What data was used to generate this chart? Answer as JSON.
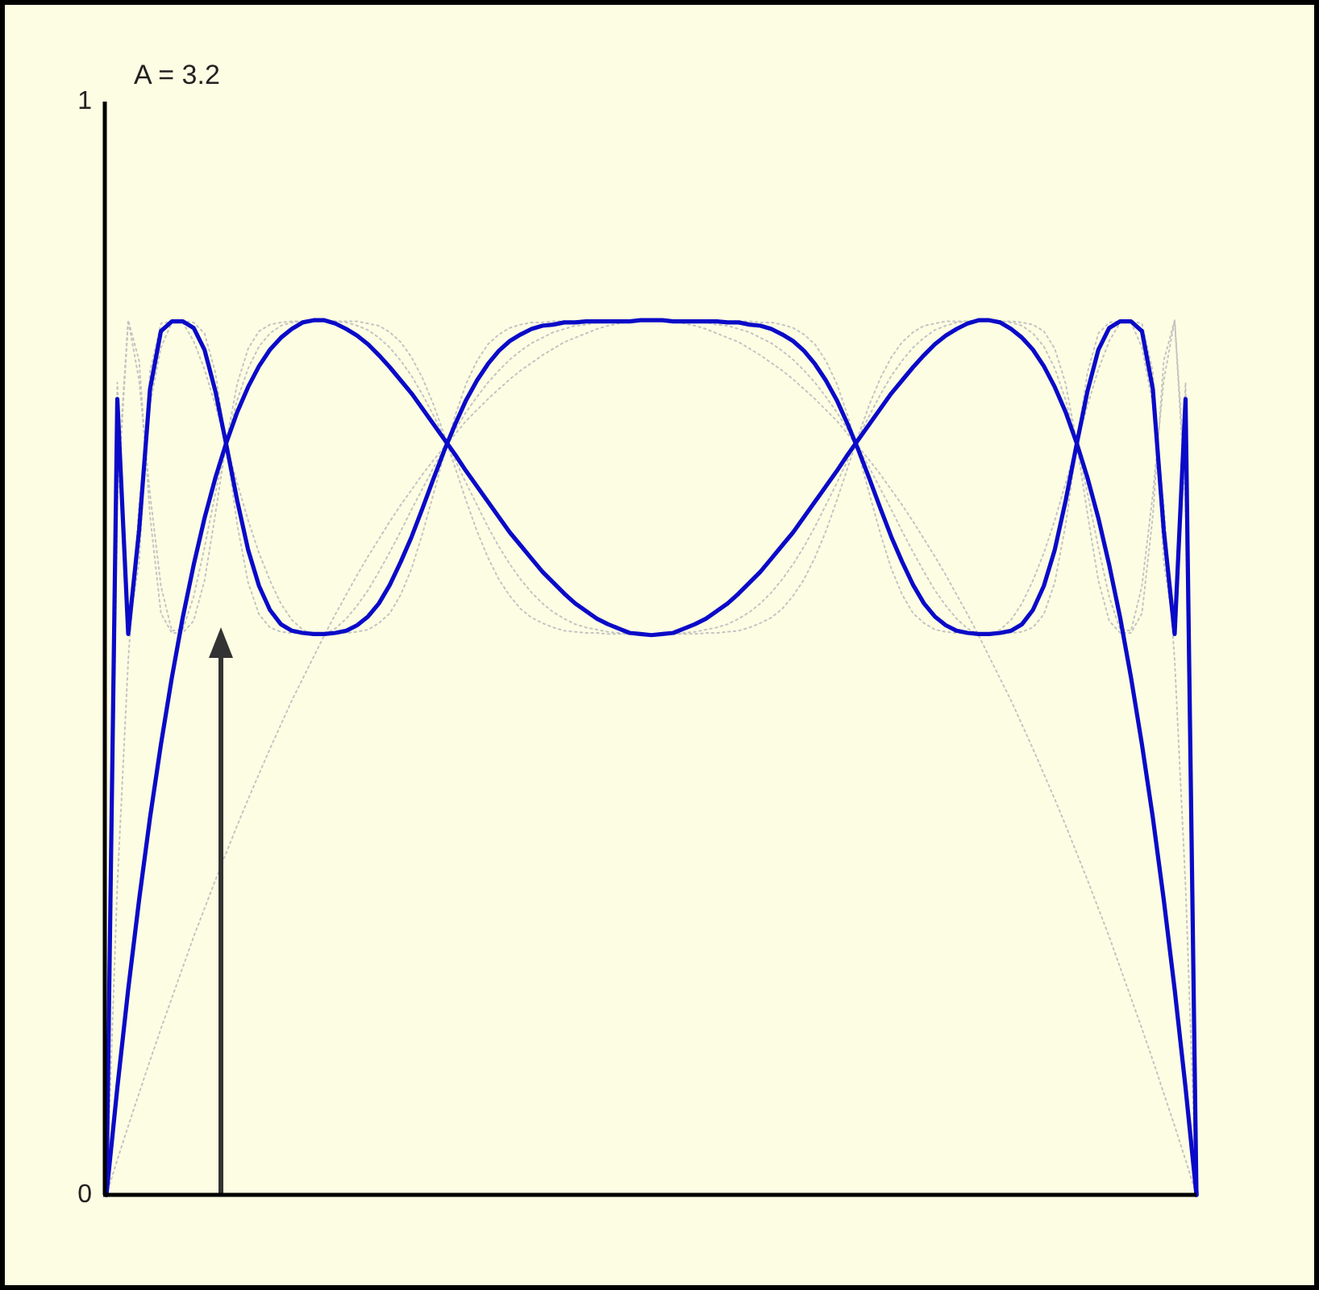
{
  "chart_data": {
    "type": "line",
    "title": "A = 3.2",
    "categories": [
      null,
      null,
      null,
      null,
      null,
      null,
      null,
      null,
      null,
      null,
      null,
      null,
      null,
      null,
      null,
      null,
      null,
      null,
      null,
      null,
      null,
      null,
      null,
      null,
      null,
      null,
      null,
      null,
      null,
      null,
      null,
      null,
      null,
      null,
      null,
      null,
      null,
      null,
      null,
      null,
      null,
      null,
      null,
      null,
      null,
      null,
      null,
      null,
      null,
      null,
      null,
      null,
      null,
      null,
      null,
      null,
      null,
      null,
      null,
      null,
      null,
      null,
      null,
      null,
      null,
      null,
      null,
      null,
      null,
      null,
      null,
      null,
      null,
      null,
      null,
      null,
      null,
      null,
      null,
      null,
      null,
      null,
      null,
      null,
      null,
      null,
      null,
      null,
      null,
      null,
      null,
      null,
      null,
      null,
      null,
      null,
      null,
      null,
      null,
      null,
      null
    ],
    "ylim": [
      0,
      1
    ],
    "yticks": [
      0,
      1
    ],
    "tick_labels": "y",
    "series": [
      {
        "color": "#c4c4c4",
        "line_style": "dotted",
        "values": [
          0,
          0.032,
          0.063,
          0.093,
          0.123,
          0.152,
          0.18,
          0.208,
          0.236,
          0.262,
          0.288,
          0.313,
          0.338,
          0.362,
          0.385,
          0.408,
          0.43,
          0.452,
          0.472,
          0.492,
          0.512,
          0.531,
          0.549,
          0.567,
          0.584,
          0.6,
          0.616,
          0.631,
          0.645,
          0.659,
          0.672,
          0.684,
          0.696,
          0.708,
          0.718,
          0.728,
          0.737,
          0.746,
          0.754,
          0.761,
          0.768,
          0.774,
          0.78,
          0.784,
          0.788,
          0.792,
          0.795,
          0.797,
          0.799,
          0.8,
          0.8,
          0.8,
          0.799,
          0.797,
          0.795,
          0.792,
          0.788,
          0.784,
          0.78,
          0.774,
          0.768,
          0.761,
          0.754,
          0.746,
          0.737,
          0.728,
          0.718,
          0.708,
          0.696,
          0.684,
          0.672,
          0.659,
          0.645,
          0.631,
          0.616,
          0.6,
          0.584,
          0.567,
          0.549,
          0.531,
          0.512,
          0.492,
          0.472,
          0.452,
          0.43,
          0.408,
          0.385,
          0.362,
          0.338,
          0.313,
          0.288,
          0.262,
          0.236,
          0.208,
          0.18,
          0.152,
          0.123,
          0.093,
          0.063,
          0.032,
          0
        ]
      },
      {
        "color": "#c4c4c4",
        "line_style": "dotted",
        "values": [
          0,
          0.283,
          0.489,
          0.631,
          0.723,
          0.775,
          0.798,
          0.798,
          0.781,
          0.755,
          0.722,
          0.686,
          0.651,
          0.617,
          0.587,
          0.562,
          0.541,
          0.526,
          0.517,
          0.512,
          0.513,
          0.518,
          0.527,
          0.539,
          0.553,
          0.57,
          0.588,
          0.607,
          0.627,
          0.646,
          0.665,
          0.683,
          0.7,
          0.716,
          0.73,
          0.743,
          0.754,
          0.764,
          0.772,
          0.779,
          0.784,
          0.789,
          0.792,
          0.795,
          0.796,
          0.798,
          0.798,
          0.799,
          0.799,
          0.799,
          0.8,
          0.799,
          0.799,
          0.799,
          0.798,
          0.798,
          0.796,
          0.795,
          0.792,
          0.789,
          0.784,
          0.779,
          0.772,
          0.764,
          0.754,
          0.743,
          0.73,
          0.716,
          0.7,
          0.683,
          0.665,
          0.646,
          0.627,
          0.607,
          0.588,
          0.57,
          0.553,
          0.539,
          0.527,
          0.518,
          0.513,
          0.512,
          0.517,
          0.526,
          0.541,
          0.562,
          0.587,
          0.617,
          0.651,
          0.686,
          0.722,
          0.755,
          0.781,
          0.798,
          0.798,
          0.775,
          0.723,
          0.631,
          0.489,
          0.283,
          0
        ]
      },
      {
        "color": "#c4c4c4",
        "line_style": "dotted",
        "values": [
          0,
          0.65,
          0.8,
          0.745,
          0.641,
          0.557,
          0.516,
          0.517,
          0.547,
          0.592,
          0.642,
          0.689,
          0.727,
          0.756,
          0.776,
          0.788,
          0.795,
          0.798,
          0.799,
          0.8,
          0.799,
          0.799,
          0.798,
          0.795,
          0.791,
          0.784,
          0.775,
          0.763,
          0.749,
          0.732,
          0.713,
          0.693,
          0.672,
          0.651,
          0.631,
          0.611,
          0.593,
          0.577,
          0.563,
          0.551,
          0.541,
          0.533,
          0.527,
          0.522,
          0.519,
          0.517,
          0.515,
          0.514,
          0.513,
          0.513,
          0.513,
          0.513,
          0.513,
          0.514,
          0.515,
          0.517,
          0.519,
          0.522,
          0.527,
          0.533,
          0.541,
          0.551,
          0.563,
          0.577,
          0.593,
          0.611,
          0.631,
          0.651,
          0.672,
          0.693,
          0.713,
          0.732,
          0.749,
          0.763,
          0.775,
          0.784,
          0.791,
          0.795,
          0.798,
          0.799,
          0.799,
          0.8,
          0.799,
          0.798,
          0.795,
          0.788,
          0.776,
          0.756,
          0.727,
          0.689,
          0.642,
          0.592,
          0.547,
          0.517,
          0.516,
          0.557,
          0.641,
          0.745,
          0.8,
          0.65,
          0
        ]
      },
      {
        "color": "#c4c4c4",
        "line_style": "dotted",
        "values": [
          0,
          0.633,
          0.8,
          0.763,
          0.621,
          0.532,
          0.514,
          0.514,
          0.525,
          0.562,
          0.623,
          0.689,
          0.742,
          0.774,
          0.79,
          0.796,
          0.798,
          0.799,
          0.799,
          0.8,
          0.8,
          0.799,
          0.799,
          0.799,
          0.797,
          0.795,
          0.789,
          0.78,
          0.766,
          0.747,
          0.723,
          0.695,
          0.665,
          0.635,
          0.607,
          0.583,
          0.563,
          0.548,
          0.536,
          0.528,
          0.523,
          0.519,
          0.516,
          0.515,
          0.514,
          0.514,
          0.513,
          0.513,
          0.513,
          0.513,
          0.513,
          0.513,
          0.513,
          0.513,
          0.513,
          0.514,
          0.514,
          0.515,
          0.516,
          0.519,
          0.523,
          0.528,
          0.536,
          0.548,
          0.563,
          0.583,
          0.607,
          0.635,
          0.665,
          0.695,
          0.723,
          0.747,
          0.766,
          0.78,
          0.789,
          0.795,
          0.797,
          0.799,
          0.799,
          0.799,
          0.8,
          0.8,
          0.799,
          0.799,
          0.798,
          0.796,
          0.79,
          0.774,
          0.742,
          0.689,
          0.623,
          0.562,
          0.525,
          0.514,
          0.514,
          0.532,
          0.621,
          0.763,
          0.8,
          0.633,
          0
        ]
      },
      {
        "color": "#c4c4c4",
        "line_style": "dotted",
        "values": [
          0,
          0.743,
          0.513,
          0.579,
          0.753,
          0.797,
          0.799,
          0.799,
          0.798,
          0.788,
          0.752,
          0.685,
          0.613,
          0.56,
          0.531,
          0.519,
          0.515,
          0.514,
          0.513,
          0.513,
          0.513,
          0.513,
          0.514,
          0.515,
          0.517,
          0.523,
          0.532,
          0.549,
          0.573,
          0.605,
          0.641,
          0.678,
          0.713,
          0.742,
          0.763,
          0.778,
          0.787,
          0.793,
          0.796,
          0.798,
          0.798,
          0.799,
          0.799,
          0.799,
          0.799,
          0.799,
          0.799,
          0.799,
          0.799,
          0.8,
          0.8,
          0.8,
          0.799,
          0.799,
          0.799,
          0.799,
          0.799,
          0.799,
          0.799,
          0.799,
          0.798,
          0.798,
          0.796,
          0.793,
          0.787,
          0.778,
          0.763,
          0.742,
          0.713,
          0.678,
          0.641,
          0.605,
          0.573,
          0.549,
          0.532,
          0.523,
          0.517,
          0.515,
          0.514,
          0.513,
          0.513,
          0.513,
          0.513,
          0.514,
          0.515,
          0.519,
          0.531,
          0.56,
          0.613,
          0.685,
          0.752,
          0.788,
          0.798,
          0.799,
          0.799,
          0.797,
          0.753,
          0.579,
          0.513,
          0.743,
          0
        ]
      },
      {
        "color": "#0a0ac8",
        "line_style": "solid",
        "values": [
          0,
          0.098,
          0.188,
          0.27,
          0.345,
          0.412,
          0.473,
          0.528,
          0.576,
          0.619,
          0.656,
          0.688,
          0.716,
          0.739,
          0.758,
          0.773,
          0.784,
          0.792,
          0.798,
          0.8,
          0.8,
          0.797,
          0.792,
          0.786,
          0.778,
          0.768,
          0.757,
          0.745,
          0.733,
          0.719,
          0.705,
          0.691,
          0.677,
          0.662,
          0.648,
          0.634,
          0.62,
          0.606,
          0.594,
          0.582,
          0.57,
          0.56,
          0.55,
          0.541,
          0.534,
          0.527,
          0.522,
          0.518,
          0.514,
          0.513,
          0.512,
          0.513,
          0.514,
          0.518,
          0.522,
          0.527,
          0.534,
          0.541,
          0.55,
          0.56,
          0.57,
          0.582,
          0.594,
          0.606,
          0.62,
          0.634,
          0.648,
          0.662,
          0.677,
          0.691,
          0.705,
          0.719,
          0.733,
          0.745,
          0.757,
          0.768,
          0.778,
          0.786,
          0.792,
          0.797,
          0.8,
          0.8,
          0.798,
          0.792,
          0.784,
          0.773,
          0.758,
          0.739,
          0.716,
          0.688,
          0.656,
          0.619,
          0.576,
          0.528,
          0.473,
          0.412,
          0.345,
          0.27,
          0.188,
          0.098,
          0
        ]
      },
      {
        "color": "#0a0ac8",
        "line_style": "solid",
        "values": [
          0,
          0.728,
          0.513,
          0.608,
          0.737,
          0.79,
          0.799,
          0.799,
          0.793,
          0.773,
          0.735,
          0.686,
          0.635,
          0.59,
          0.557,
          0.535,
          0.522,
          0.516,
          0.514,
          0.513,
          0.513,
          0.514,
          0.516,
          0.521,
          0.529,
          0.541,
          0.558,
          0.579,
          0.602,
          0.628,
          0.655,
          0.681,
          0.705,
          0.727,
          0.745,
          0.76,
          0.772,
          0.781,
          0.787,
          0.792,
          0.795,
          0.796,
          0.798,
          0.798,
          0.799,
          0.799,
          0.799,
          0.799,
          0.799,
          0.8,
          0.8,
          0.8,
          0.799,
          0.799,
          0.799,
          0.799,
          0.799,
          0.798,
          0.798,
          0.796,
          0.795,
          0.792,
          0.787,
          0.781,
          0.772,
          0.76,
          0.745,
          0.727,
          0.705,
          0.681,
          0.655,
          0.628,
          0.602,
          0.579,
          0.558,
          0.541,
          0.529,
          0.521,
          0.516,
          0.514,
          0.513,
          0.513,
          0.514,
          0.516,
          0.522,
          0.535,
          0.557,
          0.59,
          0.635,
          0.686,
          0.735,
          0.773,
          0.793,
          0.799,
          0.799,
          0.79,
          0.737,
          0.608,
          0.513,
          0.728,
          0
        ]
      }
    ]
  }
}
